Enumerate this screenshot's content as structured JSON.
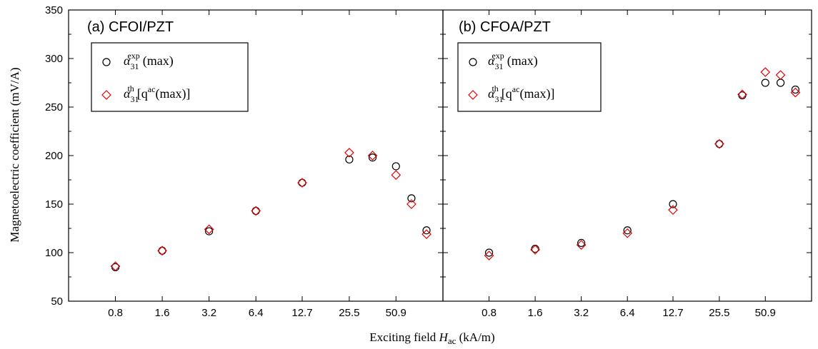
{
  "figure": {
    "ylabel": "Magnetoelectric coefficient (mV/A)",
    "xlabel_main": "Exciting field ",
    "xlabel_symbol": "H",
    "xlabel_sub": "ac",
    "xlabel_unit": " (kA/m)"
  },
  "legend": {
    "exp": {
      "symbol": "α",
      "sub": "31",
      "sup": "exp",
      "text": "(max)"
    },
    "th": {
      "symbol": "α",
      "sub": "31",
      "sup": "th",
      "text_before": "[q",
      "text_sup": "ac",
      "text_after": "(max)]"
    }
  },
  "colors": {
    "exp": "#000000",
    "th": "#e00000"
  },
  "chart_data": [
    {
      "type": "scatter",
      "title": "(a) CFOI/PZT",
      "xscale": "log2",
      "xticks": [
        0.8,
        1.6,
        3.2,
        6.4,
        12.7,
        25.5,
        50.9
      ],
      "xtick_labels": [
        "0.8",
        "1.6",
        "3.2",
        "6.4",
        "12.7",
        "25.5",
        "50.9"
      ],
      "xlim": [
        0.4,
        102
      ],
      "ylim": [
        50,
        350
      ],
      "yticks": [
        50,
        100,
        150,
        200,
        250,
        300,
        350
      ],
      "legend_position": "top-left",
      "series": [
        {
          "name": "α31exp(max)",
          "marker": "circle",
          "x": [
            0.8,
            1.6,
            3.2,
            6.4,
            12.7,
            25.5,
            36,
            50.9,
            64,
            80
          ],
          "y": [
            85,
            102,
            122,
            143,
            172,
            196,
            198,
            189,
            156,
            123
          ]
        },
        {
          "name": "α31th[qac(max)]",
          "marker": "diamond",
          "x": [
            0.8,
            1.6,
            3.2,
            6.4,
            12.7,
            25.5,
            36,
            50.9,
            64,
            80
          ],
          "y": [
            86,
            102,
            124,
            143,
            172,
            203,
            200,
            180,
            150,
            119
          ]
        }
      ]
    },
    {
      "type": "scatter",
      "title": "(b) CFOA/PZT",
      "xscale": "log2",
      "xticks": [
        0.8,
        1.6,
        3.2,
        6.4,
        12.7,
        25.5,
        50.9
      ],
      "xtick_labels": [
        "0.8",
        "1.6",
        "3.2",
        "6.4",
        "12.7",
        "25.5",
        "50.9"
      ],
      "xlim": [
        0.4,
        102
      ],
      "ylim": [
        50,
        350
      ],
      "yticks": [
        50,
        100,
        150,
        200,
        250,
        300,
        350
      ],
      "legend_position": "top-left",
      "series": [
        {
          "name": "α31exp(max)",
          "marker": "circle",
          "x": [
            0.8,
            1.6,
            3.2,
            6.4,
            12.7,
            25.5,
            36,
            50.9,
            64,
            80
          ],
          "y": [
            100,
            104,
            110,
            123,
            150,
            212,
            262,
            275,
            275,
            268
          ]
        },
        {
          "name": "α31th[qac(max)]",
          "marker": "diamond",
          "x": [
            0.8,
            1.6,
            3.2,
            6.4,
            12.7,
            25.5,
            36,
            50.9,
            64,
            80
          ],
          "y": [
            97,
            103,
            108,
            120,
            144,
            212,
            263,
            286,
            283,
            265
          ]
        }
      ]
    }
  ]
}
